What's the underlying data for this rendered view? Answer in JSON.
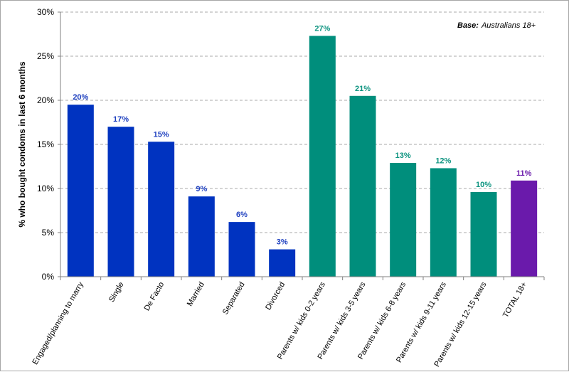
{
  "chart_data": {
    "type": "bar",
    "title": "",
    "xlabel": "",
    "ylabel": "% who bought condoms in last 6 months",
    "ylim": [
      0,
      30
    ],
    "y_ticks": [
      "0%",
      "5%",
      "10%",
      "15%",
      "20%",
      "25%",
      "30%"
    ],
    "grid": true,
    "legend": "none",
    "annotation": {
      "label": "Base:",
      "text": "Australians 18+"
    },
    "categories": [
      "Engaged/planning to marry",
      "Single",
      "De Facto",
      "Married",
      "Separated",
      "Divorced",
      "Parents w/ kids 0-2 years",
      "Parents w/ kids 3-5 years",
      "Parents w/ kids 6-8 years",
      "Parents w/ kids 9-11 years",
      "Parents w/ kids 12-15 years",
      "TOTAL 18+"
    ],
    "values": [
      19.5,
      17.0,
      15.3,
      9.1,
      6.2,
      3.1,
      27.3,
      20.5,
      12.9,
      12.3,
      9.6,
      10.9
    ],
    "data_labels": [
      "20%",
      "17%",
      "15%",
      "9%",
      "6%",
      "3%",
      "27%",
      "21%",
      "13%",
      "12%",
      "10%",
      "11%"
    ],
    "colors": [
      "#0033c0",
      "#0033c0",
      "#0033c0",
      "#0033c0",
      "#0033c0",
      "#0033c0",
      "#008e7c",
      "#008e7c",
      "#008e7c",
      "#008e7c",
      "#008e7c",
      "#6a1aab"
    ],
    "label_colors": [
      "#1d3fbf",
      "#1d3fbf",
      "#1d3fbf",
      "#1d3fbf",
      "#1d3fbf",
      "#1d3fbf",
      "#0d9480",
      "#0d9480",
      "#0d9480",
      "#0d9480",
      "#0d9480",
      "#6a1aab"
    ]
  }
}
